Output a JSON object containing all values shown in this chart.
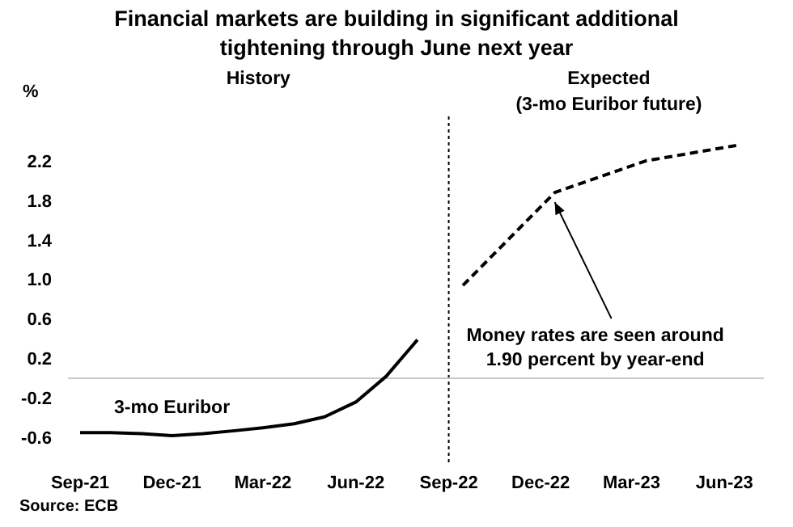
{
  "chart_data": {
    "type": "line",
    "title": "Financial markets are building in significant additional tightening through June next year",
    "ylabel": "%",
    "xlim": [
      "2021-08-20",
      "2023-07-10"
    ],
    "xticks": [
      {
        "value": "2021-09",
        "label": "Sep-21"
      },
      {
        "value": "2021-12",
        "label": "Dec-21"
      },
      {
        "value": "2022-03",
        "label": "Mar-22"
      },
      {
        "value": "2022-06",
        "label": "Jun-22"
      },
      {
        "value": "2022-09",
        "label": "Sep-22"
      },
      {
        "value": "2022-12",
        "label": "Dec-22"
      },
      {
        "value": "2023-03",
        "label": "Mar-23"
      },
      {
        "value": "2023-06",
        "label": "Jun-23"
      }
    ],
    "ylim": [
      -0.85,
      2.65
    ],
    "yticks": [
      -0.6,
      -0.2,
      0.2,
      0.6,
      {
        "value": 1,
        "label": "1.0"
      },
      1.4,
      1.8,
      2.2
    ],
    "series": [
      {
        "name": "3-mo Euribor",
        "color": "#000000",
        "line_style": "solid",
        "x": [
          "2021-09",
          "2021-10",
          "2021-11",
          "2021-12",
          "2022-01",
          "2022-02",
          "2022-03",
          "2022-04",
          "2022-05",
          "2022-06",
          "2022-07",
          "2022-08"
        ],
        "values": [
          -0.55,
          -0.55,
          -0.56,
          -0.58,
          -0.56,
          -0.53,
          -0.5,
          -0.46,
          -0.39,
          -0.24,
          0.02,
          0.39
        ]
      },
      {
        "name": "Expected\n(3-mo Euribor future)",
        "color": "#000000",
        "line_style": "dashed",
        "x": [
          "2022-09-15",
          "2022-12-15",
          "2023-03-15",
          "2023-06-15"
        ],
        "values": [
          0.94,
          1.88,
          2.2,
          2.36
        ]
      }
    ],
    "ref_lines": [
      {
        "axis": "x",
        "value": "2022-09",
        "color": "#000000",
        "line_style": "dotted"
      },
      {
        "axis": "y",
        "value": 0,
        "color": "#c8c8c8",
        "line_style": "solid"
      }
    ],
    "annotations": [
      "History",
      {
        "text": "Money rates are seen around 1.90 percent by year-end",
        "x": "2022-12-15",
        "y": 1.88
      },
      "Source: ECB"
    ],
    "grid": false,
    "legend": false,
    "marker": "none"
  }
}
